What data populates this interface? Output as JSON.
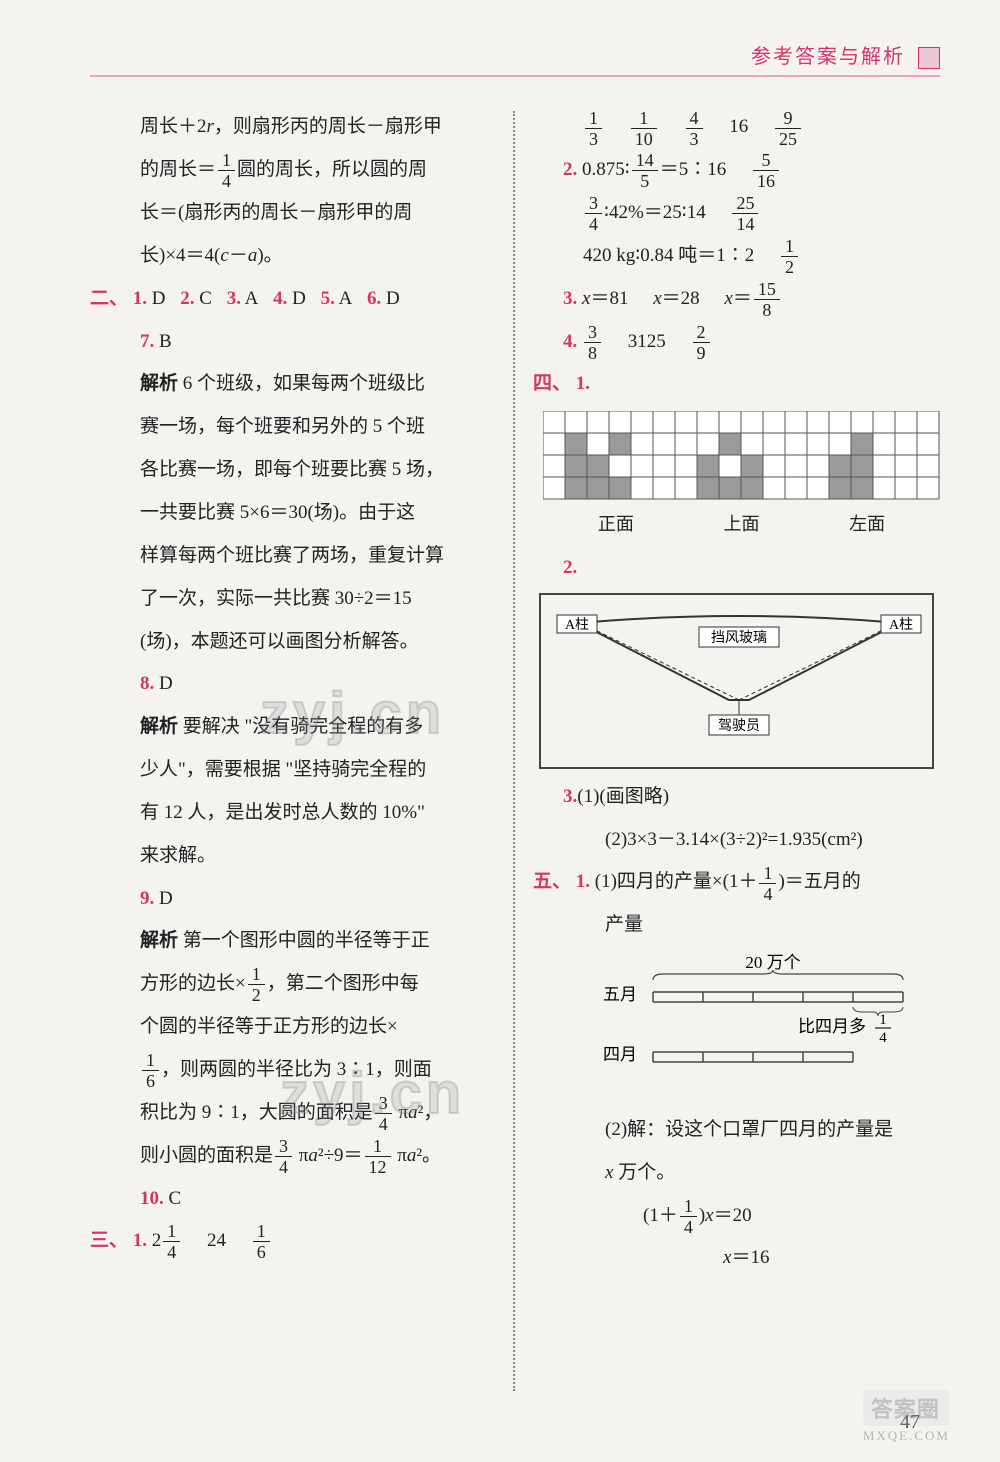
{
  "header": {
    "title": "参考答案与解析"
  },
  "left": {
    "p1a": "周长＋2",
    "p1a_r": "r",
    "p1b": "，则扇形丙的周长－扇形甲",
    "p1c": "的周长＝",
    "p1c_num": "1",
    "p1c_den": "4",
    "p1d": "圆的周长，所以圆的周",
    "p1e": "长＝(扇形丙的周长－扇形甲的周",
    "p1f": "长)×4＝4(",
    "p1f_c": "c",
    "p1f_minus": "－",
    "p1f_a": "a",
    "p1f_end": ")。",
    "sec2": "二、",
    "q1": "1.",
    "a1": "D",
    "q2": "2.",
    "a2": "C",
    "q3": "3.",
    "a3": "A",
    "q4": "4.",
    "a4": "D",
    "q5": "5.",
    "a5": "A",
    "q6": "6.",
    "a6": "D",
    "q7": "7.",
    "a7": "B",
    "jiexi": "解析",
    "p7a": " 6 个班级，如果每两个班级比",
    "p7b": "赛一场，每个班要和另外的 5 个班",
    "p7c": "各比赛一场，即每个班要比赛 5 场，",
    "p7d": "一共要比赛 5×6＝30(场)。由于这",
    "p7e": "样算每两个班比赛了两场，重复计算",
    "p7f": "了一次，实际一共比赛 30÷2＝15",
    "p7g": "(场)，本题还可以画图分析解答。",
    "q8": "8.",
    "a8": "D",
    "p8a": " 要解决 \"没有骑完全程的有多",
    "p8b": "少人\"，需要根据 \"坚持骑完全程的",
    "p8c": "有 12 人，是出发时总人数的 10%\"",
    "p8d": "来求解。",
    "q9": "9.",
    "a9": "D",
    "p9a": " 第一个图形中圆的半径等于正",
    "p9b": "方形的边长×",
    "p9b_num": "1",
    "p9b_den": "2",
    "p9c": "，第二个图形中每",
    "p9d": "个圆的半径等于正方形的边长×",
    "p9e_num": "1",
    "p9e_den": "6",
    "p9e2": "，则两圆的半径比为 3∶1，则面",
    "p9f": "积比为 9∶1，大圆的面积是",
    "p9f_num": "3",
    "p9f_den": "4",
    "p9g": "π",
    "p9g_a": "a",
    "p9g_sq": "²",
    "p9g_end": "，",
    "p9h": "则小圆的面积是",
    "p9h_num": "3",
    "p9h_den": "4",
    "p9i": "π",
    "p9i_a": "a",
    "p9i_sq": "²",
    "p9j": "÷9＝",
    "p9j_num": "1",
    "p9j_den": "12",
    "p9k": "π",
    "p9k_a": "a",
    "p9k_sq": "²",
    "p9k_end": "。",
    "q10": "10.",
    "a10": "C",
    "sec3": "三、",
    "s3_1": "1.",
    "s3_1a_int": "2",
    "s3_1a_num": "1",
    "s3_1a_den": "4",
    "s3_1b": "24",
    "s3_1c_num": "1",
    "s3_1c_den": "6"
  },
  "right": {
    "r1a_num": "1",
    "r1a_den": "3",
    "r1b_num": "1",
    "r1b_den": "10",
    "r1c_num": "4",
    "r1c_den": "3",
    "r1d": "16",
    "r1e_num": "9",
    "r1e_den": "25",
    "r2": "2.",
    "r2a": "0.875∶",
    "r2a_num": "14",
    "r2a_den": "5",
    "r2b": "＝5∶16",
    "r2c_num": "5",
    "r2c_den": "16",
    "r2d_num": "3",
    "r2d_den": "4",
    "r2e": "∶42%＝25∶14",
    "r2f_num": "25",
    "r2f_den": "14",
    "r2g": "420 kg∶0.84 吨＝1∶2",
    "r2h_num": "1",
    "r2h_den": "2",
    "r3": "3.",
    "r3a_x": "x",
    "r3a": "＝81",
    "r3b_x": "x",
    "r3b": "＝28",
    "r3c_x": "x",
    "r3c": "＝",
    "r3c_num": "15",
    "r3c_den": "8",
    "r4": "4.",
    "r4a_num": "3",
    "r4a_den": "8",
    "r4b": "3125",
    "r4c_num": "2",
    "r4c_den": "9",
    "sec4": "四、",
    "s4_1": "1.",
    "grid": {
      "cols": 18,
      "rows": 4,
      "cell_size": 22,
      "border_color": "#555",
      "fill_color": "#9a9a9a",
      "canvas_bg": "#ffffff",
      "front_label": "正面",
      "top_label": "上面",
      "left_label": "左面",
      "shaded": [
        [
          1,
          0
        ],
        [
          2,
          0
        ],
        [
          3,
          0
        ],
        [
          1,
          1
        ],
        [
          2,
          1
        ],
        [
          1,
          2
        ],
        [
          3,
          2
        ],
        [
          7,
          0
        ],
        [
          8,
          0
        ],
        [
          9,
          0
        ],
        [
          7,
          1
        ],
        [
          9,
          1
        ],
        [
          8,
          2
        ],
        [
          13,
          0
        ],
        [
          14,
          0
        ],
        [
          13,
          1
        ],
        [
          14,
          1
        ],
        [
          14,
          2
        ]
      ]
    },
    "s4_2": "2.",
    "diag2": {
      "a_label": "A柱",
      "glass_label": "挡风玻璃",
      "driver_label": "驾驶员"
    },
    "s4_3": "3.",
    "s4_3a": "(1)(画图略)",
    "s4_3b": "(2)3×3－3.14×(3÷2)²=1.935(cm²)",
    "sec5": "五、",
    "s5_1": "1.",
    "s5_1a": "(1)四月的产量×(1＋",
    "s5_1a_num": "1",
    "s5_1a_den": "4",
    "s5_1b": ")＝五月的",
    "s5_1c": "产量",
    "bar": {
      "may_label": "五月",
      "apr_label": "四月",
      "top_label": "20 万个",
      "extra_label_a": "比四月多",
      "extra_num": "1",
      "extra_den": "4",
      "line_color": "#444"
    },
    "s5_2a": "(2)解：设这个口罩厂四月的产量是",
    "s5_2b_x": "x",
    "s5_2b": " 万个。",
    "s5_2c_a": "(1＋",
    "s5_2c_num": "1",
    "s5_2c_den": "4",
    "s5_2c_b": ")",
    "s5_2c_x": "x",
    "s5_2c_c": "＝20",
    "s5_2d_x": "x",
    "s5_2d": "＝16"
  },
  "page_num": "47",
  "wm": {
    "b1": "答案圈",
    "b2": "MXQE.COM"
  }
}
